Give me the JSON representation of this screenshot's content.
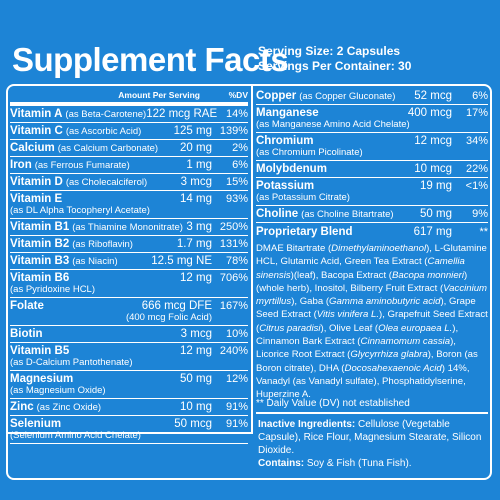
{
  "title": "Supplement Facts",
  "serving_size": "Serving Size: 2 Capsules",
  "servings_per_container": "Servings Per Container: 30",
  "header": {
    "amount": "Amount Per Serving",
    "dv": "%DV"
  },
  "left_rows": [
    {
      "name": "Vitamin A",
      "note": "(as Beta-Carotene)",
      "amount": "122 mcg RAE",
      "dv": "14%"
    },
    {
      "name": "Vitamin C",
      "note": "(as Ascorbic Acid)",
      "amount": "125 mg",
      "dv": "139%"
    },
    {
      "name": "Calcium",
      "note": "(as Calcium Carbonate)",
      "amount": "20 mg",
      "dv": "2%"
    },
    {
      "name": "Iron",
      "note": "(as Ferrous Fumarate)",
      "amount": "1 mg",
      "dv": "6%"
    },
    {
      "name": "Vitamin D",
      "note": "(as Cholecalciferol)",
      "amount": "3 mcg",
      "dv": "15%"
    },
    {
      "name": "Vitamin E",
      "sub": "(as DL Alpha Tocopheryl Acetate)",
      "amount": "14 mg",
      "dv": "93%"
    },
    {
      "name": "Vitamin B1",
      "note": "(as Thiamine Mononitrate)",
      "amount": "3 mg",
      "dv": "250%"
    },
    {
      "name": "Vitamin B2",
      "note": "(as Riboflavin)",
      "amount": "1.7 mg",
      "dv": "131%"
    },
    {
      "name": "Vitamin B3",
      "note": "(as Niacin)",
      "amount": "12.5 mg NE",
      "dv": "78%"
    },
    {
      "name": "Vitamin B6",
      "sub": "(as Pyridoxine HCL)",
      "amount": "12 mg",
      "dv": "706%"
    },
    {
      "name": "Folate",
      "amount": "666 mcg DFE",
      "amount_sub": "(400 mcg Folic Acid)",
      "dv": "167%"
    },
    {
      "name": "Biotin",
      "amount": "3 mcg",
      "dv": "10%"
    },
    {
      "name": "Vitamin B5",
      "sub": "(as D-Calcium Pantothenate)",
      "amount": "12 mg",
      "dv": "240%"
    },
    {
      "name": "Magnesium",
      "sub": "(as Magnesium Oxide)",
      "amount": "50 mg",
      "dv": "12%"
    },
    {
      "name": "Zinc",
      "note": "(as Zinc Oxide)",
      "amount": "10 mg",
      "dv": "91%"
    },
    {
      "name": "Selenium",
      "sub": "(Selenium Amino Acid Chelate)",
      "amount": "50 mcg",
      "dv": "91%"
    }
  ],
  "right_rows": [
    {
      "name": "Copper",
      "note": "(as Copper Gluconate)",
      "amount": "52 mcg",
      "dv": "6%"
    },
    {
      "name": "Manganese",
      "sub": "(as Manganese Amino Acid Chelate)",
      "amount": "400 mcg",
      "dv": "17%"
    },
    {
      "name": "Chromium",
      "sub": "(as Chromium Picolinate)",
      "amount": "12 mcg",
      "dv": "34%"
    },
    {
      "name": "Molybdenum",
      "amount": "10 mcg",
      "dv": "22%"
    },
    {
      "name": "Potassium",
      "sub": "(as Potassium Citrate)",
      "amount": "19 mg",
      "dv": "<1%"
    },
    {
      "name": "Choline",
      "note": "(as Choline Bitartrate)",
      "amount": "50 mg",
      "dv": "9%"
    },
    {
      "name": "Proprietary Blend",
      "amount": "617 mg",
      "dv": "**"
    }
  ],
  "blend": [
    {
      "text": "DMAE Bitartrate ("
    },
    {
      "text": "Dimethylaminoethanol",
      "italic": true
    },
    {
      "text": "), L-Glutamine HCL, Glutamic Acid, Green Tea Extract ("
    },
    {
      "text": "Camellia sinensis",
      "italic": true
    },
    {
      "text": ")(leaf), Bacopa Extract ("
    },
    {
      "text": "Bacopa monnieri",
      "italic": true
    },
    {
      "text": ")(whole herb), Inositol, Bilberry Fruit Extract ("
    },
    {
      "text": "Vaccinium myrtillus",
      "italic": true
    },
    {
      "text": "), Gaba ("
    },
    {
      "text": "Gamma aminobutyric acid",
      "italic": true
    },
    {
      "text": "), Grape Seed Extract ("
    },
    {
      "text": "Vitis vinifera L.",
      "italic": true
    },
    {
      "text": "), Grapefruit Seed Extract ("
    },
    {
      "text": "Citrus paradisi",
      "italic": true
    },
    {
      "text": "), Olive Leaf ("
    },
    {
      "text": "Olea europaea L.",
      "italic": true
    },
    {
      "text": "), Cinnamon Bark Extract ("
    },
    {
      "text": "Cinnamomum cassia",
      "italic": true
    },
    {
      "text": "), Licorice Root Extract ("
    },
    {
      "text": "Glycyrrhiza glabra",
      "italic": true
    },
    {
      "text": "), Boron (as Boron citrate), DHA ("
    },
    {
      "text": "Docosahexaenoic Acid",
      "italic": true
    },
    {
      "text": ") 14%, Vanadyl (as Vanadyl sulfate), Phosphatidylserine, Huperzine A."
    }
  ],
  "footnote": "** Daily Value (DV) not established",
  "inactive": {
    "label": "Inactive Ingredients:",
    "text": " Cellulose (Vegetable Capsule), Rice Flour, Magnesium Stearate, Silicon Dioxide."
  },
  "contains": {
    "label": "Contains:",
    "text": " Soy & Fish (Tuna Fish)."
  }
}
